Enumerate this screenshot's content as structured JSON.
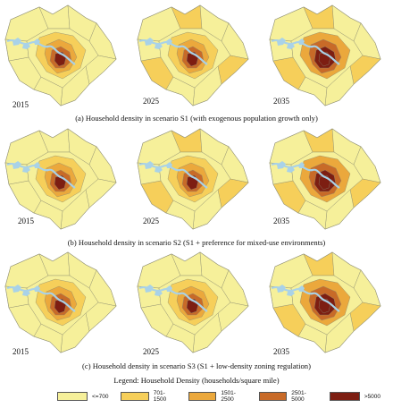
{
  "colors": {
    "c1": "#f6f09a",
    "c2": "#f6cf5a",
    "c3": "#eba83c",
    "c4": "#c86a28",
    "c5": "#7d1e12",
    "water": "#a9d2e8",
    "boundary": "#8a8a70"
  },
  "panels": [
    {
      "caption": "(a) Household density in scenario S1 (with exogenous population growth only)",
      "maps": [
        {
          "year": "2015",
          "core_level": 4,
          "spread": 0.45
        },
        {
          "year": "2025",
          "core_level": 4,
          "spread": 0.6
        },
        {
          "year": "2035",
          "core_level": 4,
          "spread": 0.8
        }
      ]
    },
    {
      "caption": "(b) Household density in scenario S2 (S1 + preference for mixed-use environments)",
      "maps": [
        {
          "year": "2015",
          "core_level": 5,
          "spread": 0.45
        },
        {
          "year": "2025",
          "core_level": 4,
          "spread": 0.65
        },
        {
          "year": "2035",
          "core_level": 5,
          "spread": 0.85
        }
      ]
    },
    {
      "caption": "(c) Household density in scenario S3 (S1 + low-density zoning regulation)",
      "maps": [
        {
          "year": "2015",
          "core_level": 4,
          "spread": 0.4
        },
        {
          "year": "2025",
          "core_level": 5,
          "spread": 0.55
        },
        {
          "year": "2035",
          "core_level": 4,
          "spread": 0.75
        }
      ]
    }
  ],
  "legend": {
    "title": "Legend: Household Density (households/square mile)",
    "items": [
      {
        "label": "<=700",
        "color": "#f6f09a"
      },
      {
        "label": "701-1500",
        "color": "#f6cf5a"
      },
      {
        "label": "1501-2500",
        "color": "#eba83c"
      },
      {
        "label": "2501-5000",
        "color": "#c86a28"
      },
      {
        "label": ">5000",
        "color": "#7d1e12"
      }
    ]
  }
}
